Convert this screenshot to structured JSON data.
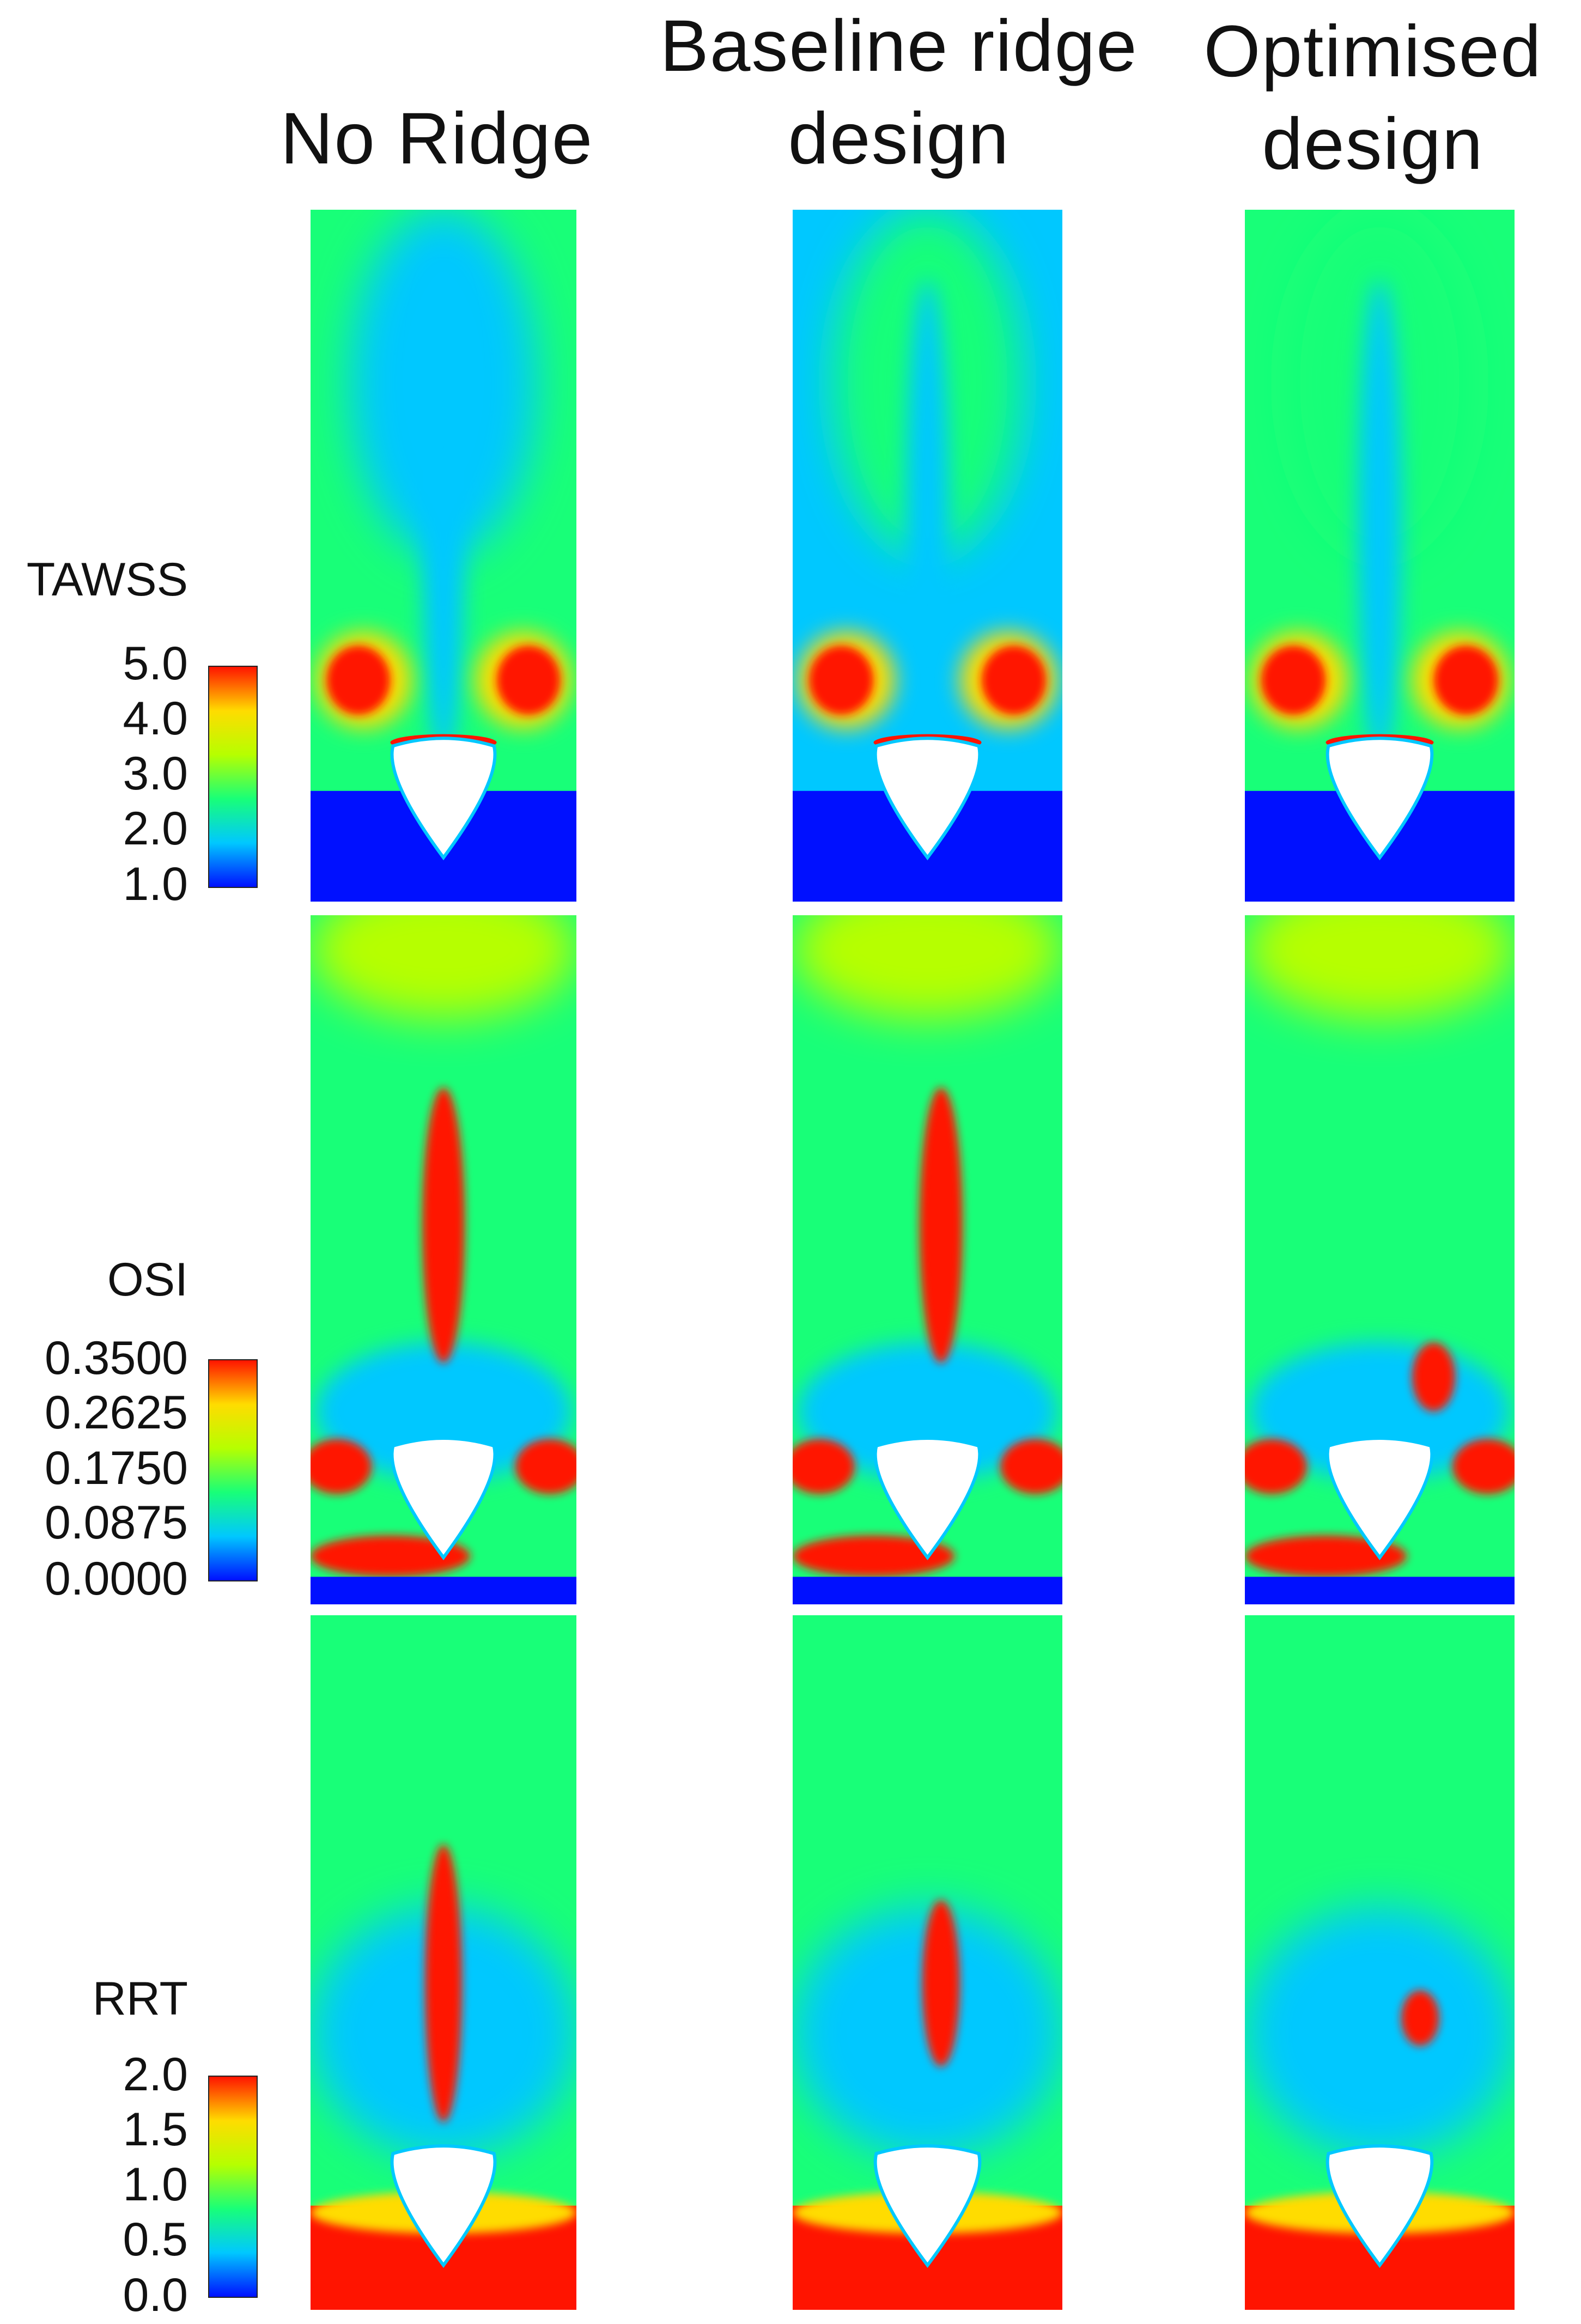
{
  "columns": [
    {
      "title": "No Ridge"
    },
    {
      "title": "Baseline ridge design"
    },
    {
      "title": "Optimised design"
    }
  ],
  "metrics": [
    {
      "name": "TAWSS",
      "ticks": [
        "5.0",
        "4.0",
        "3.0",
        "2.0",
        "1.0"
      ]
    },
    {
      "name": "OSI",
      "ticks": [
        "0.3500",
        "0.2625",
        "0.1750",
        "0.0875",
        "0.0000"
      ]
    },
    {
      "name": "RRT",
      "ticks": [
        "2.0",
        "1.5",
        "1.0",
        "0.5",
        "0.0"
      ]
    }
  ],
  "colormap": [
    "#0010ff",
    "#00c8ff",
    "#18ff78",
    "#b6ff00",
    "#ffdc00",
    "#ff1400"
  ],
  "body_color": "#ffffff"
}
